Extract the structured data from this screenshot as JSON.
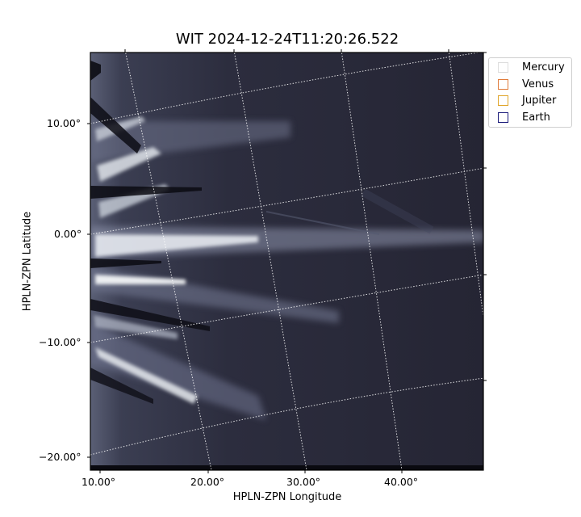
{
  "title": "WIT 2024-12-24T11:20:26.522",
  "xlabel": "HPLN-ZPN Longitude",
  "ylabel": "HPLN-ZPN Latitude",
  "x_ticks": [
    "10.00°",
    "20.00°",
    "30.00°",
    "40.00°"
  ],
  "y_ticks": [
    "10.00°",
    "0.00°",
    "−10.00°",
    "−20.00°"
  ],
  "legend": [
    {
      "label": "Mercury",
      "color": "#dddddd"
    },
    {
      "label": "Venus",
      "color": "#e07b3a"
    },
    {
      "label": "Jupiter",
      "color": "#e0a52a"
    },
    {
      "label": "Earth",
      "color": "#1a1a7a"
    }
  ],
  "colors": {
    "background": "#262635",
    "streamer": "#dfe4ea",
    "grid": "#ffffff"
  }
}
